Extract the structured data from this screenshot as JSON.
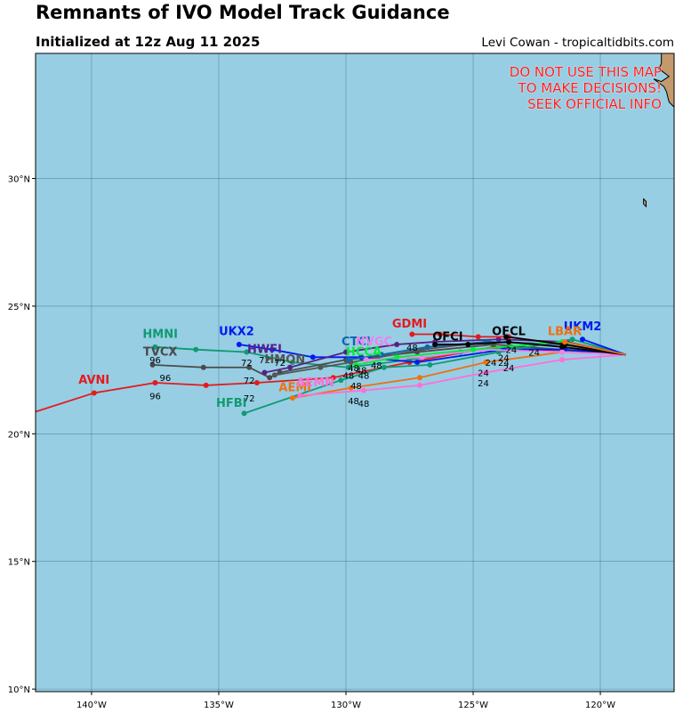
{
  "title": "Remnants of IVO Model Track Guidance",
  "subtitle": "Initialized at 12z Aug 11 2025",
  "credit": "Levi Cowan - tropicaltidbits.com",
  "warning_lines": [
    "DO NOT USE THIS MAP",
    "TO MAKE DECISIONS!",
    "SEEK OFFICIAL INFO"
  ],
  "colors": {
    "ocean": "#97cee4",
    "land": "#c49a6c",
    "grid": "#3f6f7f",
    "warning": "#ff1a1a"
  },
  "chart_data": {
    "type": "map",
    "projection": "equirectangular",
    "lon_range": [
      -142.2,
      -117.1
    ],
    "lat_range": [
      9.9,
      34.9
    ],
    "lon_ticks": [
      {
        "value": -140,
        "label": "140°W"
      },
      {
        "value": -135,
        "label": "135°W"
      },
      {
        "value": -130,
        "label": "130°W"
      },
      {
        "value": -125,
        "label": "125°W"
      },
      {
        "value": -120,
        "label": "120°W"
      }
    ],
    "lat_ticks": [
      {
        "value": 10,
        "label": "10°N"
      },
      {
        "value": 15,
        "label": "15°N"
      },
      {
        "value": 20,
        "label": "20°N"
      },
      {
        "value": 25,
        "label": "25°N"
      },
      {
        "value": 30,
        "label": "30°N"
      }
    ],
    "grid": true,
    "land": [
      {
        "name": "baja-california-coast",
        "points": [
          [
            -117.1,
            34.9
          ],
          [
            -117.6,
            34.9
          ],
          [
            -117.6,
            34.5
          ],
          [
            -117.7,
            34.3
          ],
          [
            -117.3,
            34.0
          ],
          [
            -117.6,
            33.8
          ],
          [
            -117.9,
            33.9
          ],
          [
            -117.5,
            33.6
          ],
          [
            -117.4,
            33.4
          ],
          [
            -117.3,
            33.0
          ],
          [
            -117.1,
            32.8
          ],
          [
            -117.1,
            32.6
          ]
        ]
      },
      {
        "name": "guadalupe-island",
        "points": [
          [
            -118.3,
            29.2
          ],
          [
            -118.2,
            29.1
          ],
          [
            -118.2,
            28.9
          ],
          [
            -118.3,
            29.0
          ],
          [
            -118.3,
            29.2
          ]
        ]
      }
    ],
    "tracks": [
      {
        "name": "AVNI",
        "color": "#e41a1c",
        "points": [
          [
            -142.4,
            20.8
          ],
          [
            -139.9,
            21.6
          ],
          [
            -137.5,
            22.0
          ],
          [
            -135.5,
            21.9
          ],
          [
            -133.5,
            22.0
          ],
          [
            -130.5,
            22.2
          ],
          [
            -127.5,
            22.8
          ],
          [
            -124.2,
            23.4
          ],
          [
            -119.0,
            23.1
          ]
        ],
        "label_pos": [
          -139.9,
          22.1
        ],
        "hour_labels": [
          {
            "text": "96",
            "pos": [
              -137.5,
              21.5
            ]
          },
          {
            "text": "72",
            "pos": [
              -133.8,
              21.4
            ]
          }
        ]
      },
      {
        "name": "HMNI",
        "color": "#109a70",
        "points": [
          [
            -137.5,
            23.4
          ],
          [
            -135.9,
            23.3
          ],
          [
            -133.9,
            23.2
          ],
          [
            -132.1,
            22.8
          ],
          [
            -129.9,
            22.6
          ],
          [
            -127.5,
            22.9
          ],
          [
            -125.5,
            23.2
          ],
          [
            -123.5,
            23.4
          ],
          [
            -119.0,
            23.1
          ]
        ],
        "label_pos": [
          -137.3,
          23.9
        ],
        "hour_labels": [
          {
            "text": "96",
            "pos": [
              -137.5,
              22.9
            ]
          }
        ]
      },
      {
        "name": "TVCX",
        "color": "#4a4a4a",
        "points": [
          [
            -137.6,
            22.7
          ],
          [
            -135.6,
            22.6
          ],
          [
            -133.8,
            22.6
          ],
          [
            -133.0,
            22.2
          ],
          [
            -132.6,
            22.4
          ],
          [
            -130.0,
            22.9
          ],
          [
            -127.2,
            23.2
          ],
          [
            -124.2,
            23.5
          ],
          [
            -119.0,
            23.1
          ]
        ],
        "label_pos": [
          -137.3,
          23.2
        ],
        "hour_labels": [
          {
            "text": "96",
            "pos": [
              -137.1,
              22.2
            ]
          },
          {
            "text": "72",
            "pos": [
              -133.8,
              22.1
            ]
          }
        ]
      },
      {
        "name": "UKX2",
        "color": "#0019f0",
        "points": [
          [
            -134.2,
            23.5
          ],
          [
            -132.9,
            23.3
          ],
          [
            -131.3,
            23.0
          ],
          [
            -129.4,
            23.0
          ],
          [
            -127.2,
            22.8
          ],
          [
            -123.8,
            23.3
          ],
          [
            -121.4,
            23.3
          ],
          [
            -119.0,
            23.1
          ]
        ],
        "label_pos": [
          -134.3,
          24.0
        ],
        "hour_labels": [
          {
            "text": "72",
            "pos": [
              -133.9,
              22.8
            ]
          }
        ]
      },
      {
        "name": "HWFI",
        "color": "#552288",
        "points": [
          [
            -133.2,
            22.4
          ],
          [
            -132.2,
            22.6
          ],
          [
            -130.0,
            23.2
          ],
          [
            -128.0,
            23.5
          ],
          [
            -126.5,
            23.6
          ],
          [
            -124.0,
            23.7
          ],
          [
            -121.3,
            23.6
          ],
          [
            -119.0,
            23.1
          ]
        ],
        "label_pos": [
          -133.2,
          23.3
        ],
        "hour_labels": [
          {
            "text": "72",
            "pos": [
              -133.2,
              22.9
            ]
          }
        ]
      },
      {
        "name": "HMON",
        "color": "#555555",
        "points": [
          [
            -132.8,
            22.3
          ],
          [
            -131.0,
            22.6
          ],
          [
            -129.8,
            22.8
          ],
          [
            -127.0,
            23.3
          ],
          [
            -124.4,
            23.6
          ],
          [
            -121.4,
            23.5
          ],
          [
            -119.0,
            23.1
          ]
        ],
        "label_pos": [
          -132.4,
          22.9
        ],
        "hour_labels": [
          {
            "text": "72",
            "pos": [
              -132.6,
              22.8
            ]
          }
        ]
      },
      {
        "name": "HFBI",
        "color": "#109a70",
        "points": [
          [
            -134.0,
            20.8
          ],
          [
            -130.2,
            22.1
          ],
          [
            -128.5,
            22.6
          ],
          [
            -126.7,
            22.7
          ],
          [
            -124.0,
            23.2
          ],
          [
            -121.1,
            23.7
          ],
          [
            -119.0,
            23.1
          ]
        ],
        "label_pos": [
          -134.5,
          21.2
        ],
        "hour_labels": [
          {
            "text": "48",
            "pos": [
              -129.6,
              21.9
            ]
          }
        ]
      },
      {
        "name": "AEMI",
        "color": "#f07010",
        "points": [
          [
            -132.1,
            21.4
          ],
          [
            -129.8,
            21.8
          ],
          [
            -127.1,
            22.2
          ],
          [
            -124.5,
            22.8
          ],
          [
            -121.5,
            23.2
          ],
          [
            -119.0,
            23.1
          ]
        ],
        "label_pos": [
          -132.0,
          21.8
        ],
        "hour_labels": [
          {
            "text": "48",
            "pos": [
              -129.7,
              21.3
            ]
          },
          {
            "text": "24",
            "pos": [
              -124.6,
              22.4
            ]
          }
        ]
      },
      {
        "name": "AEMN",
        "color": "#ff6ed8",
        "points": [
          [
            -131.8,
            21.5
          ],
          [
            -129.3,
            21.7
          ],
          [
            -127.1,
            21.9
          ],
          [
            -124.5,
            22.4
          ],
          [
            -121.5,
            22.9
          ],
          [
            -119.0,
            23.1
          ]
        ],
        "label_pos": [
          -131.2,
          22.0
        ],
        "hour_labels": [
          {
            "text": "48",
            "pos": [
              -129.3,
              21.2
            ]
          },
          {
            "text": "24",
            "pos": [
              -124.6,
              22.0
            ]
          }
        ]
      },
      {
        "name": "CTCI",
        "color": "#0f66aa",
        "points": [
          [
            -129.9,
            22.9
          ],
          [
            -128.6,
            23.1
          ],
          [
            -126.8,
            23.4
          ],
          [
            -124.5,
            23.6
          ],
          [
            -121.5,
            23.5
          ],
          [
            -119.0,
            23.1
          ]
        ],
        "label_pos": [
          -129.6,
          23.6
        ],
        "hour_labels": [
          {
            "text": "48",
            "pos": [
              -129.9,
              22.3
            ]
          }
        ]
      },
      {
        "name": "NVGC",
        "color": "#ee82ee",
        "points": [
          [
            -129.2,
            22.9
          ],
          [
            -127.0,
            23.0
          ],
          [
            -124.6,
            23.3
          ],
          [
            -121.5,
            23.2
          ],
          [
            -119.0,
            23.1
          ]
        ],
        "label_pos": [
          -128.9,
          23.6
        ],
        "hour_labels": [
          {
            "text": "48",
            "pos": [
              -128.8,
              22.7
            ]
          }
        ]
      },
      {
        "name": "HCCA",
        "color": "#00ee33",
        "points": [
          [
            -129.6,
            22.7
          ],
          [
            -128.0,
            23.0
          ],
          [
            -125.0,
            23.3
          ],
          [
            -121.5,
            23.6
          ],
          [
            -119.0,
            23.1
          ]
        ],
        "label_pos": [
          -129.3,
          23.2
        ],
        "hour_labels": [
          {
            "text": "48",
            "pos": [
              -129.3,
              22.3
            ]
          }
        ]
      },
      {
        "name": "GDMI",
        "color": "#e41a1c",
        "points": [
          [
            -127.4,
            23.9
          ],
          [
            -126.3,
            23.9
          ],
          [
            -124.8,
            23.8
          ],
          [
            -123.6,
            23.8
          ],
          [
            -121.5,
            23.5
          ],
          [
            -119.0,
            23.1
          ]
        ],
        "label_pos": [
          -127.5,
          24.3
        ],
        "hour_labels": [
          {
            "text": "48",
            "pos": [
              -127.4,
              23.4
            ]
          }
        ]
      },
      {
        "name": "OFCI",
        "color": "#000000",
        "points": [
          [
            -126.5,
            23.5
          ],
          [
            -125.2,
            23.5
          ],
          [
            -123.6,
            23.6
          ],
          [
            -121.5,
            23.4
          ],
          [
            -119.0,
            23.1
          ]
        ],
        "label_pos": [
          -126.0,
          23.8
        ],
        "hour_labels": [
          {
            "text": "24",
            "pos": [
              -123.5,
              23.3
            ]
          }
        ]
      },
      {
        "name": "OFCL",
        "color": "#000000",
        "points": [
          [
            -123.7,
            23.8
          ],
          [
            -121.4,
            23.5
          ],
          [
            -119.0,
            23.1
          ]
        ],
        "label_pos": [
          -123.6,
          24.0
        ],
        "hour_labels": [
          {
            "text": "24",
            "pos": [
              -122.6,
              23.2
            ]
          }
        ]
      },
      {
        "name": "UKM2",
        "color": "#0019f0",
        "points": [
          [
            -120.7,
            23.7
          ],
          [
            -119.0,
            23.1
          ]
        ],
        "label_pos": [
          -120.7,
          24.2
        ],
        "hour_labels": []
      },
      {
        "name": "LBAR",
        "color": "#f07010",
        "points": [
          [
            -121.4,
            23.6
          ],
          [
            -119.0,
            23.1
          ]
        ],
        "label_pos": [
          -121.4,
          24.0
        ],
        "hour_labels": []
      }
    ],
    "extra_hour_labels": [
      {
        "text": "24",
        "pos": [
          -123.8,
          23.0
        ]
      },
      {
        "text": "24",
        "pos": [
          -124.3,
          22.8
        ]
      },
      {
        "text": "24",
        "pos": [
          -123.8,
          22.8
        ]
      },
      {
        "text": "24",
        "pos": [
          -123.6,
          22.6
        ]
      },
      {
        "text": "48",
        "pos": [
          -129.4,
          22.5
        ]
      },
      {
        "text": "48",
        "pos": [
          -129.7,
          22.6
        ]
      }
    ]
  }
}
